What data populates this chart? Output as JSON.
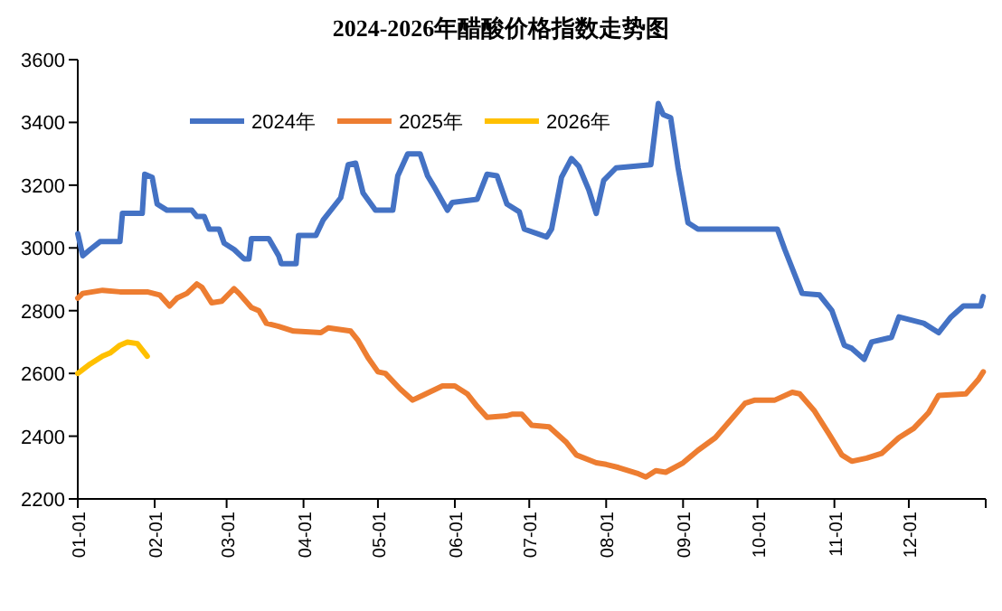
{
  "chart_data": {
    "type": "line",
    "title": "2024-2026年醋酸价格指数走势图",
    "xlim": [
      "--01-01",
      "--12-31"
    ],
    "xticks": [
      {
        "value": "--01-01",
        "label": "01-01"
      },
      {
        "value": "--02-01",
        "label": "02-01"
      },
      {
        "value": "--03-01",
        "label": "03-01"
      },
      {
        "value": "--04-01",
        "label": "04-01"
      },
      {
        "value": "--05-01",
        "label": "05-01"
      },
      {
        "value": "--06-01",
        "label": "06-01"
      },
      {
        "value": "--07-01",
        "label": "07-01"
      },
      {
        "value": "--08-01",
        "label": "08-01"
      },
      {
        "value": "--09-01",
        "label": "09-01"
      },
      {
        "value": "--10-01",
        "label": "10-01"
      },
      {
        "value": "--11-01",
        "label": "11-01"
      },
      {
        "value": "--12-01",
        "label": "12-01"
      },
      {
        "value": "--12-31",
        "label": null
      }
    ],
    "ylim": [
      2200,
      3600
    ],
    "yticks": [
      2200,
      2400,
      2600,
      2800,
      3000,
      3200,
      3400,
      3600
    ],
    "grid": false,
    "legend": "top left",
    "marker": "none",
    "line_style": "solid",
    "series": [
      {
        "name": "2024年",
        "color": "#4472c4",
        "x": [
          "--01-01",
          "--01-03",
          "--01-06",
          "--01-10",
          "--01-18",
          "--01-19",
          "--01-27",
          "--01-28",
          "--01-31",
          "--02-02",
          "--02-06",
          "--02-16",
          "--02-18",
          "--02-21",
          "--02-23",
          "--02-27",
          "--02-29",
          "--03-04",
          "--03-08",
          "--03-10",
          "--03-11",
          "--03-18",
          "--03-22",
          "--03-23",
          "--03-29",
          "--03-30",
          "--04-06",
          "--04-09",
          "--04-16",
          "--04-19",
          "--04-22",
          "--04-25",
          "--04-30",
          "--05-07",
          "--05-09",
          "--05-13",
          "--05-18",
          "--05-21",
          "--05-24",
          "--05-29",
          "--05-31",
          "--06-10",
          "--06-14",
          "--06-18",
          "--06-22",
          "--06-27",
          "--06-29",
          "--07-08",
          "--07-10",
          "--07-14",
          "--07-18",
          "--07-21",
          "--07-25",
          "--07-28",
          "--07-31",
          "--08-05",
          "--08-19",
          "--08-22",
          "--08-24",
          "--08-27",
          "--08-30",
          "--09-03",
          "--09-07",
          "--09-20",
          "--10-09",
          "--10-12",
          "--10-19",
          "--10-26",
          "--10-31",
          "--11-05",
          "--11-08",
          "--11-13",
          "--11-16",
          "--11-24",
          "--11-27",
          "--12-02",
          "--12-07",
          "--12-13",
          "--12-18",
          "--12-23",
          "--12-30",
          "--12-31"
        ],
        "values": [
          3045,
          2975,
          2995,
          3020,
          3020,
          3110,
          3110,
          3235,
          3225,
          3140,
          3120,
          3120,
          3100,
          3100,
          3060,
          3060,
          3015,
          2995,
          2965,
          2965,
          3030,
          3030,
          2975,
          2950,
          2950,
          3040,
          3040,
          3090,
          3160,
          3265,
          3270,
          3175,
          3120,
          3120,
          3230,
          3300,
          3300,
          3230,
          3190,
          3120,
          3145,
          3155,
          3235,
          3230,
          3140,
          3115,
          3060,
          3035,
          3060,
          3225,
          3285,
          3260,
          3185,
          3110,
          3215,
          3255,
          3265,
          3460,
          3425,
          3415,
          3255,
          3080,
          3060,
          3060,
          3060,
          2995,
          2855,
          2850,
          2800,
          2690,
          2680,
          2645,
          2700,
          2715,
          2780,
          2770,
          2760,
          2730,
          2780,
          2815,
          2815,
          2845
        ]
      },
      {
        "name": "2025年",
        "color": "#ed7d31",
        "x": [
          "--01-01",
          "--01-03",
          "--01-11",
          "--01-18",
          "--01-29",
          "--02-03",
          "--02-07",
          "--02-10",
          "--02-14",
          "--02-18",
          "--02-20",
          "--02-24",
          "--02-28",
          "--03-04",
          "--03-06",
          "--03-11",
          "--03-14",
          "--03-17",
          "--03-22",
          "--03-28",
          "--04-08",
          "--04-11",
          "--04-20",
          "--04-23",
          "--04-27",
          "--05-01",
          "--05-04",
          "--05-10",
          "--05-15",
          "--05-19",
          "--05-27",
          "--06-01",
          "--06-06",
          "--06-10",
          "--06-14",
          "--06-22",
          "--06-24",
          "--06-28",
          "--07-02",
          "--07-09",
          "--07-16",
          "--07-20",
          "--07-28",
          "--08-01",
          "--08-06",
          "--08-14",
          "--08-17",
          "--08-21",
          "--08-25",
          "--09-01",
          "--09-07",
          "--09-14",
          "--09-20",
          "--09-26",
          "--09-30",
          "--10-08",
          "--10-15",
          "--10-18",
          "--10-24",
          "--10-30",
          "--11-04",
          "--11-08",
          "--11-14",
          "--11-20",
          "--11-27",
          "--12-03",
          "--12-09",
          "--12-13",
          "--12-24",
          "--12-29",
          "--12-31"
        ],
        "values": [
          2840,
          2855,
          2865,
          2860,
          2860,
          2850,
          2815,
          2840,
          2855,
          2885,
          2875,
          2825,
          2830,
          2870,
          2855,
          2810,
          2800,
          2760,
          2750,
          2735,
          2730,
          2745,
          2735,
          2705,
          2650,
          2605,
          2600,
          2550,
          2515,
          2530,
          2560,
          2560,
          2535,
          2495,
          2460,
          2465,
          2470,
          2470,
          2435,
          2430,
          2380,
          2340,
          2315,
          2310,
          2300,
          2280,
          2270,
          2290,
          2285,
          2315,
          2355,
          2395,
          2450,
          2505,
          2515,
          2515,
          2540,
          2535,
          2480,
          2405,
          2340,
          2320,
          2330,
          2345,
          2395,
          2425,
          2475,
          2530,
          2535,
          2580,
          2605
        ]
      },
      {
        "name": "2026年",
        "color": "#ffc000",
        "x": [
          "--01-01",
          "--01-06",
          "--01-11",
          "--01-14",
          "--01-18",
          "--01-21",
          "--01-25",
          "--01-27",
          "--01-29"
        ],
        "values": [
          2600,
          2630,
          2655,
          2665,
          2690,
          2700,
          2695,
          2675,
          2655
        ]
      }
    ]
  }
}
